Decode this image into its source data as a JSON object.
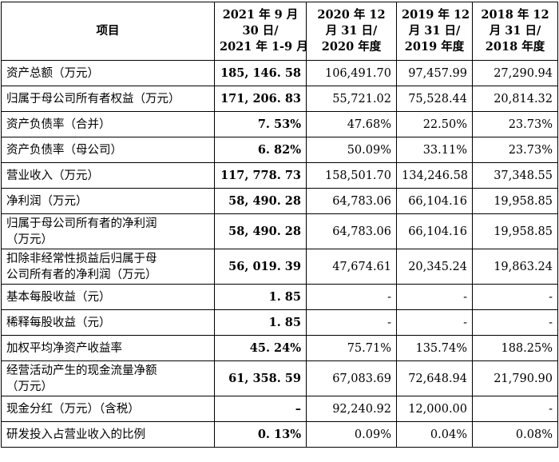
{
  "table": {
    "header": [
      [
        "项目"
      ],
      [
        "2021 年 9 月",
        "30 日/",
        "2021 年 1-9 月"
      ],
      [
        "2020 年 12",
        "月 31 日/",
        "2020 年度"
      ],
      [
        "2019 年 12",
        "月 31 日/",
        "2019 年度"
      ],
      [
        "2018 年 12",
        "月 31 日/",
        "2018 年度"
      ]
    ],
    "rows": [
      {
        "label": [
          "资产总额（万元）"
        ],
        "cells": [
          "185, 146. 58",
          "106,491.70",
          "97,457.99",
          "27,290.94"
        ]
      },
      {
        "label": [
          "归属于母公司所有者权益（万元）"
        ],
        "cells": [
          "171, 206. 83",
          "55,721.02",
          "75,528.44",
          "20,814.32"
        ]
      },
      {
        "label": [
          "资产负债率（合并）"
        ],
        "cells": [
          "7. 53%",
          "47.68%",
          "22.50%",
          "23.73%"
        ]
      },
      {
        "label": [
          "资产负债率（母公司）"
        ],
        "cells": [
          "6. 82%",
          "50.09%",
          "33.11%",
          "23.73%"
        ]
      },
      {
        "label": [
          "营业收入（万元）"
        ],
        "cells": [
          "117, 778. 73",
          "158,501.70",
          "134,246.58",
          "37,348.55"
        ]
      },
      {
        "label": [
          "净利润（万元）"
        ],
        "cells": [
          "58, 490. 28",
          "64,783.06",
          "66,104.16",
          "19,958.85"
        ]
      },
      {
        "label": [
          "归属于母公司所有者的净利润",
          "（万元）"
        ],
        "cells": [
          "58, 490. 28",
          "64,783.06",
          "66,104.16",
          "19,958.85"
        ]
      },
      {
        "label": [
          "扣除非经常性损益后归属于母",
          "公司所有者的净利润（万元）"
        ],
        "cells": [
          "56, 019. 39",
          "47,674.61",
          "20,345.24",
          "19,863.24"
        ]
      },
      {
        "label": [
          "基本每股收益（元）"
        ],
        "cells": [
          "1. 85",
          "-",
          "-",
          "-"
        ]
      },
      {
        "label": [
          "稀释每股收益（元）"
        ],
        "cells": [
          "1. 85",
          "-",
          "-",
          "-"
        ]
      },
      {
        "label": [
          "加权平均净资产收益率"
        ],
        "cells": [
          "45. 24%",
          "75.71%",
          "135.74%",
          "188.25%"
        ]
      },
      {
        "label": [
          "经营活动产生的现金流量净额",
          "（万元）"
        ],
        "cells": [
          "61, 358. 59",
          "67,083.69",
          "72,648.94",
          "21,790.90"
        ]
      },
      {
        "label": [
          "现金分红（万元）（含税）"
        ],
        "cells": [
          "–",
          "92,240.92",
          "12,000.00",
          "-"
        ]
      },
      {
        "label": [
          "研发投入占营业收入的比例"
        ],
        "cells": [
          "0. 13%",
          "0.09%",
          "0.04%",
          "0.08%"
        ]
      }
    ]
  }
}
